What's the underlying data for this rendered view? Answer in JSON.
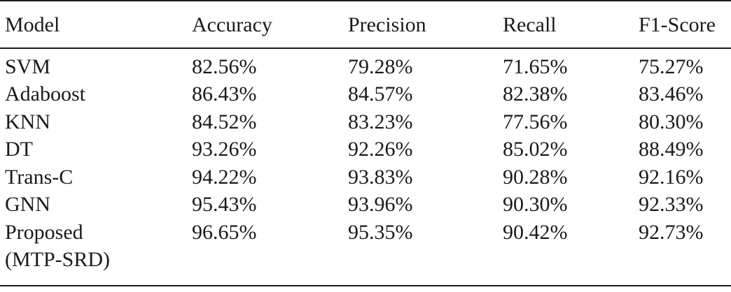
{
  "table": {
    "headers": [
      "Model",
      "Accuracy",
      "Precision",
      "Recall",
      "F1-Score"
    ],
    "rows": [
      [
        "SVM",
        "82.56%",
        "79.28%",
        "71.65%",
        "75.27%"
      ],
      [
        "Adaboost",
        "86.43%",
        "84.57%",
        "82.38%",
        "83.46%"
      ],
      [
        "KNN",
        "84.52%",
        "83.23%",
        "77.56%",
        "80.30%"
      ],
      [
        "DT",
        "93.26%",
        "92.26%",
        "85.02%",
        "88.49%"
      ],
      [
        "Trans-C",
        "94.22%",
        "93.83%",
        "90.28%",
        "92.16%"
      ],
      [
        "GNN",
        "95.43%",
        "93.96%",
        "90.30%",
        "92.33%"
      ],
      [
        "Proposed",
        "96.65%",
        "95.35%",
        "90.42%",
        "92.73%"
      ]
    ],
    "last_row_continuation": "(MTP-SRD)"
  }
}
